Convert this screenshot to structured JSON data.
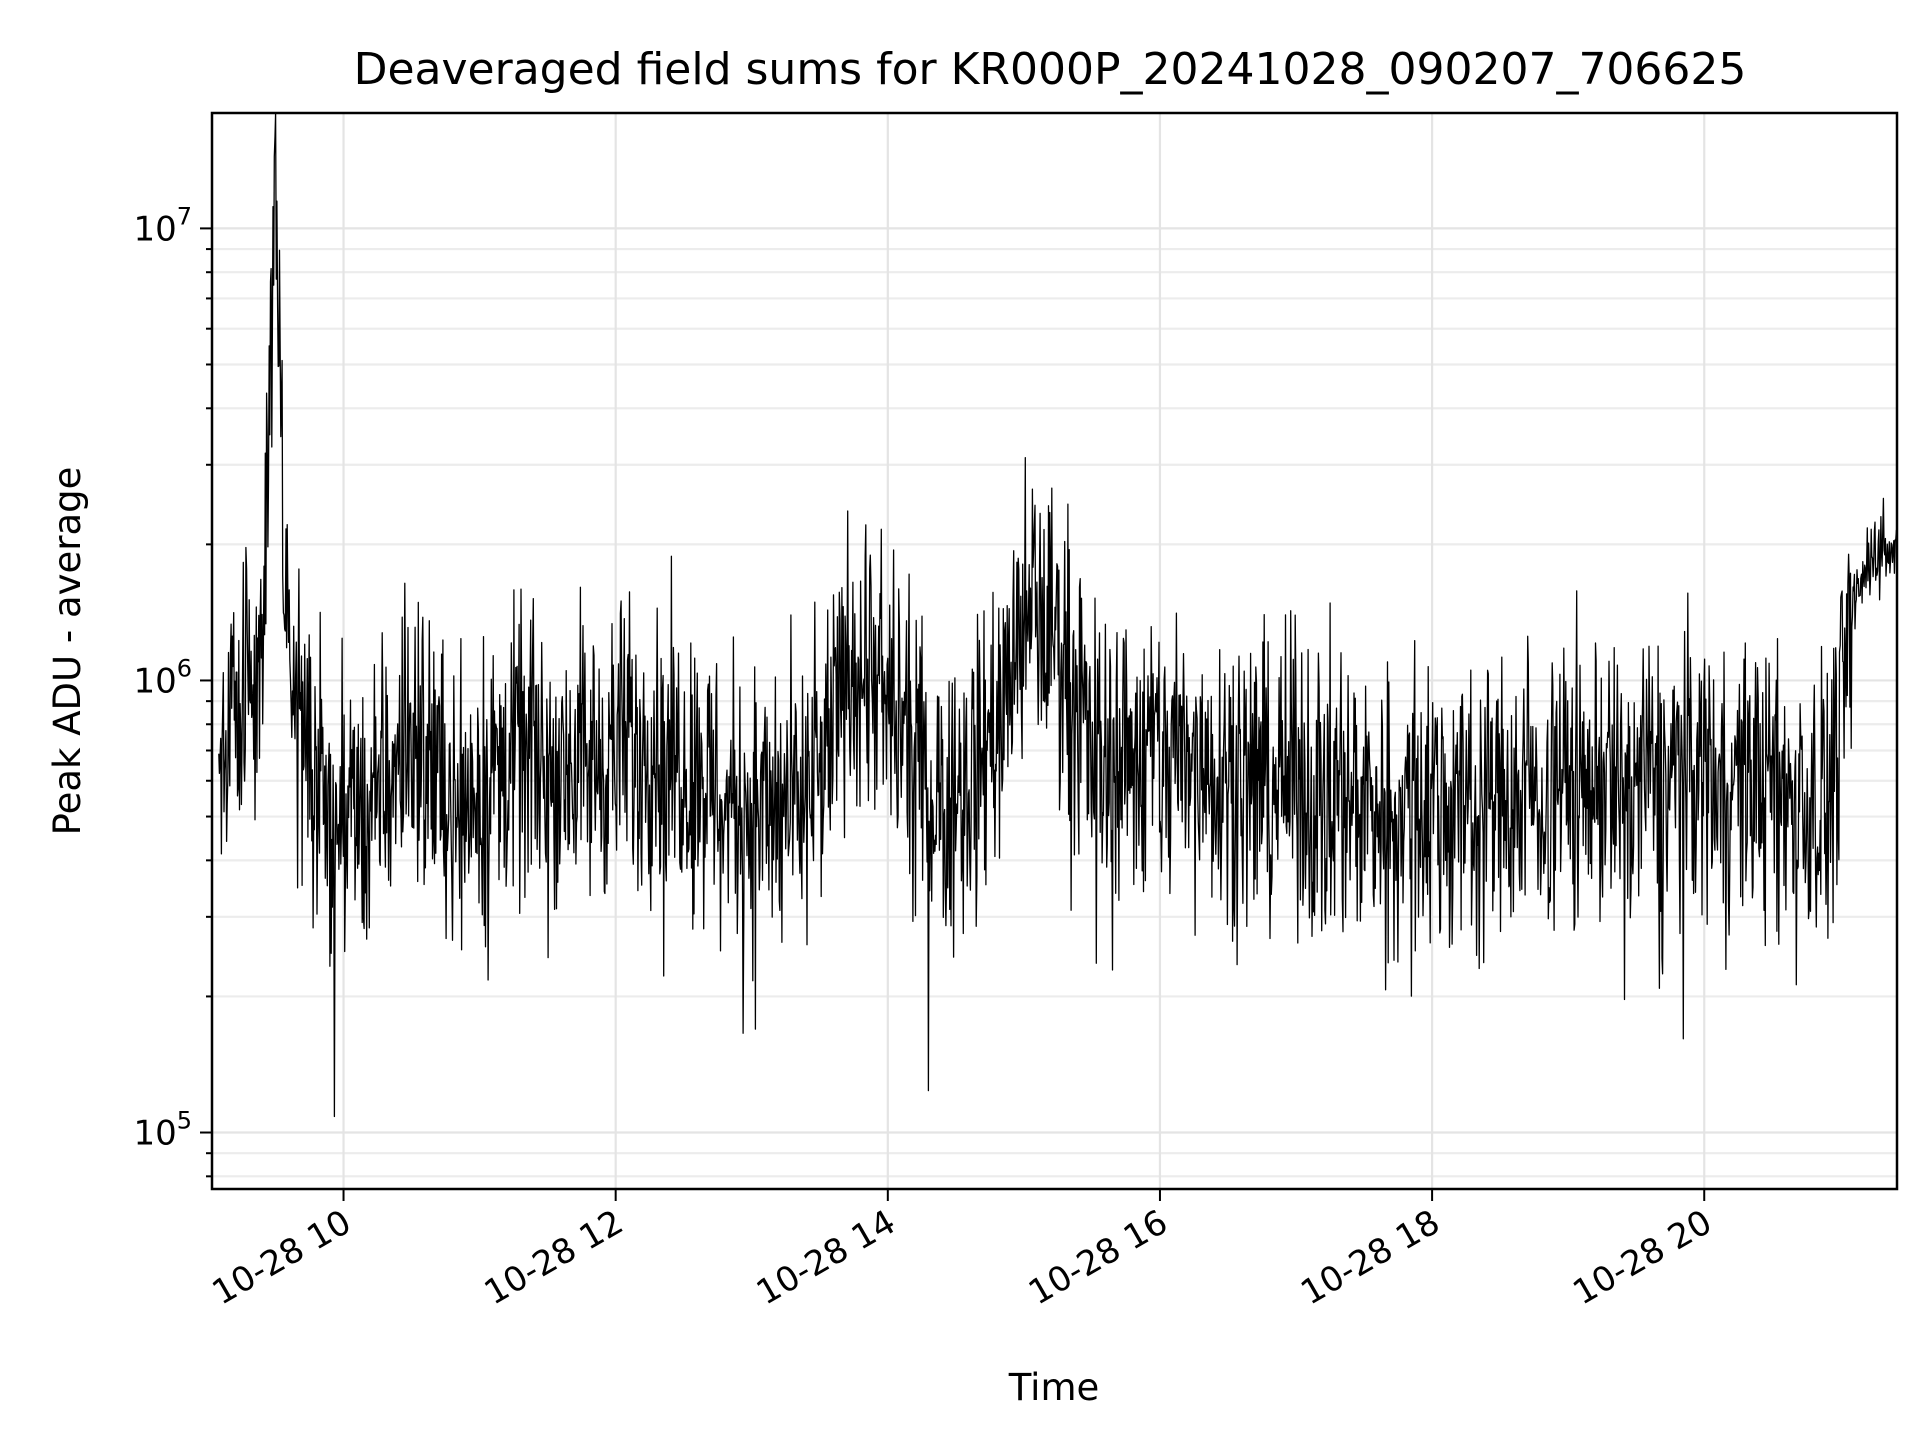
{
  "chart_data": {
    "type": "line",
    "title": "Deaveraged field sums for KR000P_20241028_090207_706625",
    "xlabel": "Time",
    "ylabel": "Peak ADU - average",
    "yscale": "log",
    "xlim": [
      "2024-10-28 09:02",
      "2024-10-28 21:25"
    ],
    "ylim": [
      75000,
      18000000
    ],
    "x_ticks": [
      "10-28 10",
      "10-28 12",
      "10-28 14",
      "10-28 16",
      "10-28 18",
      "10-28 20"
    ],
    "y_ticks": [
      {
        "base": "10",
        "exp": "5",
        "value": 100000
      },
      {
        "base": "10",
        "exp": "6",
        "value": 1000000
      },
      {
        "base": "10",
        "exp": "7",
        "value": 10000000
      }
    ],
    "grid": true,
    "line_color": "#000000",
    "series": [
      {
        "x": [
          "2024-10-28 09:05",
          "2024-10-28 09:15",
          "2024-10-28 09:25",
          "2024-10-28 09:30",
          "2024-10-28 09:35",
          "2024-10-28 09:45",
          "2024-10-28 09:55",
          "2024-10-28 10:00",
          "2024-10-28 10:10",
          "2024-10-28 10:30",
          "2024-10-28 10:50",
          "2024-10-28 11:10",
          "2024-10-28 11:30",
          "2024-10-28 11:50",
          "2024-10-28 12:10",
          "2024-10-28 12:30",
          "2024-10-28 12:50",
          "2024-10-28 13:10",
          "2024-10-28 13:30",
          "2024-10-28 13:45",
          "2024-10-28 14:00",
          "2024-10-28 14:20",
          "2024-10-28 14:40",
          "2024-10-28 14:55",
          "2024-10-28 15:05",
          "2024-10-28 15:15",
          "2024-10-28 15:30",
          "2024-10-28 16:00",
          "2024-10-28 16:30",
          "2024-10-28 17:00",
          "2024-10-28 17:30",
          "2024-10-28 18:00",
          "2024-10-28 18:30",
          "2024-10-28 19:00",
          "2024-10-28 19:30",
          "2024-10-28 20:00",
          "2024-10-28 20:30",
          "2024-10-28 20:55",
          "2024-10-28 21:05",
          "2024-10-28 21:15",
          "2024-10-28 21:25"
        ],
        "values": [
          700000,
          1000000,
          1300000,
          14000000,
          1100000,
          700000,
          450000,
          500000,
          500000,
          800000,
          550000,
          650000,
          700000,
          650000,
          750000,
          700000,
          550000,
          500000,
          600000,
          1200000,
          900000,
          550000,
          650000,
          1100000,
          1500000,
          1300000,
          700000,
          700000,
          650000,
          600000,
          550000,
          550000,
          550000,
          600000,
          600000,
          650000,
          600000,
          550000,
          1400000,
          2000000,
          1900000
        ]
      }
    ]
  }
}
